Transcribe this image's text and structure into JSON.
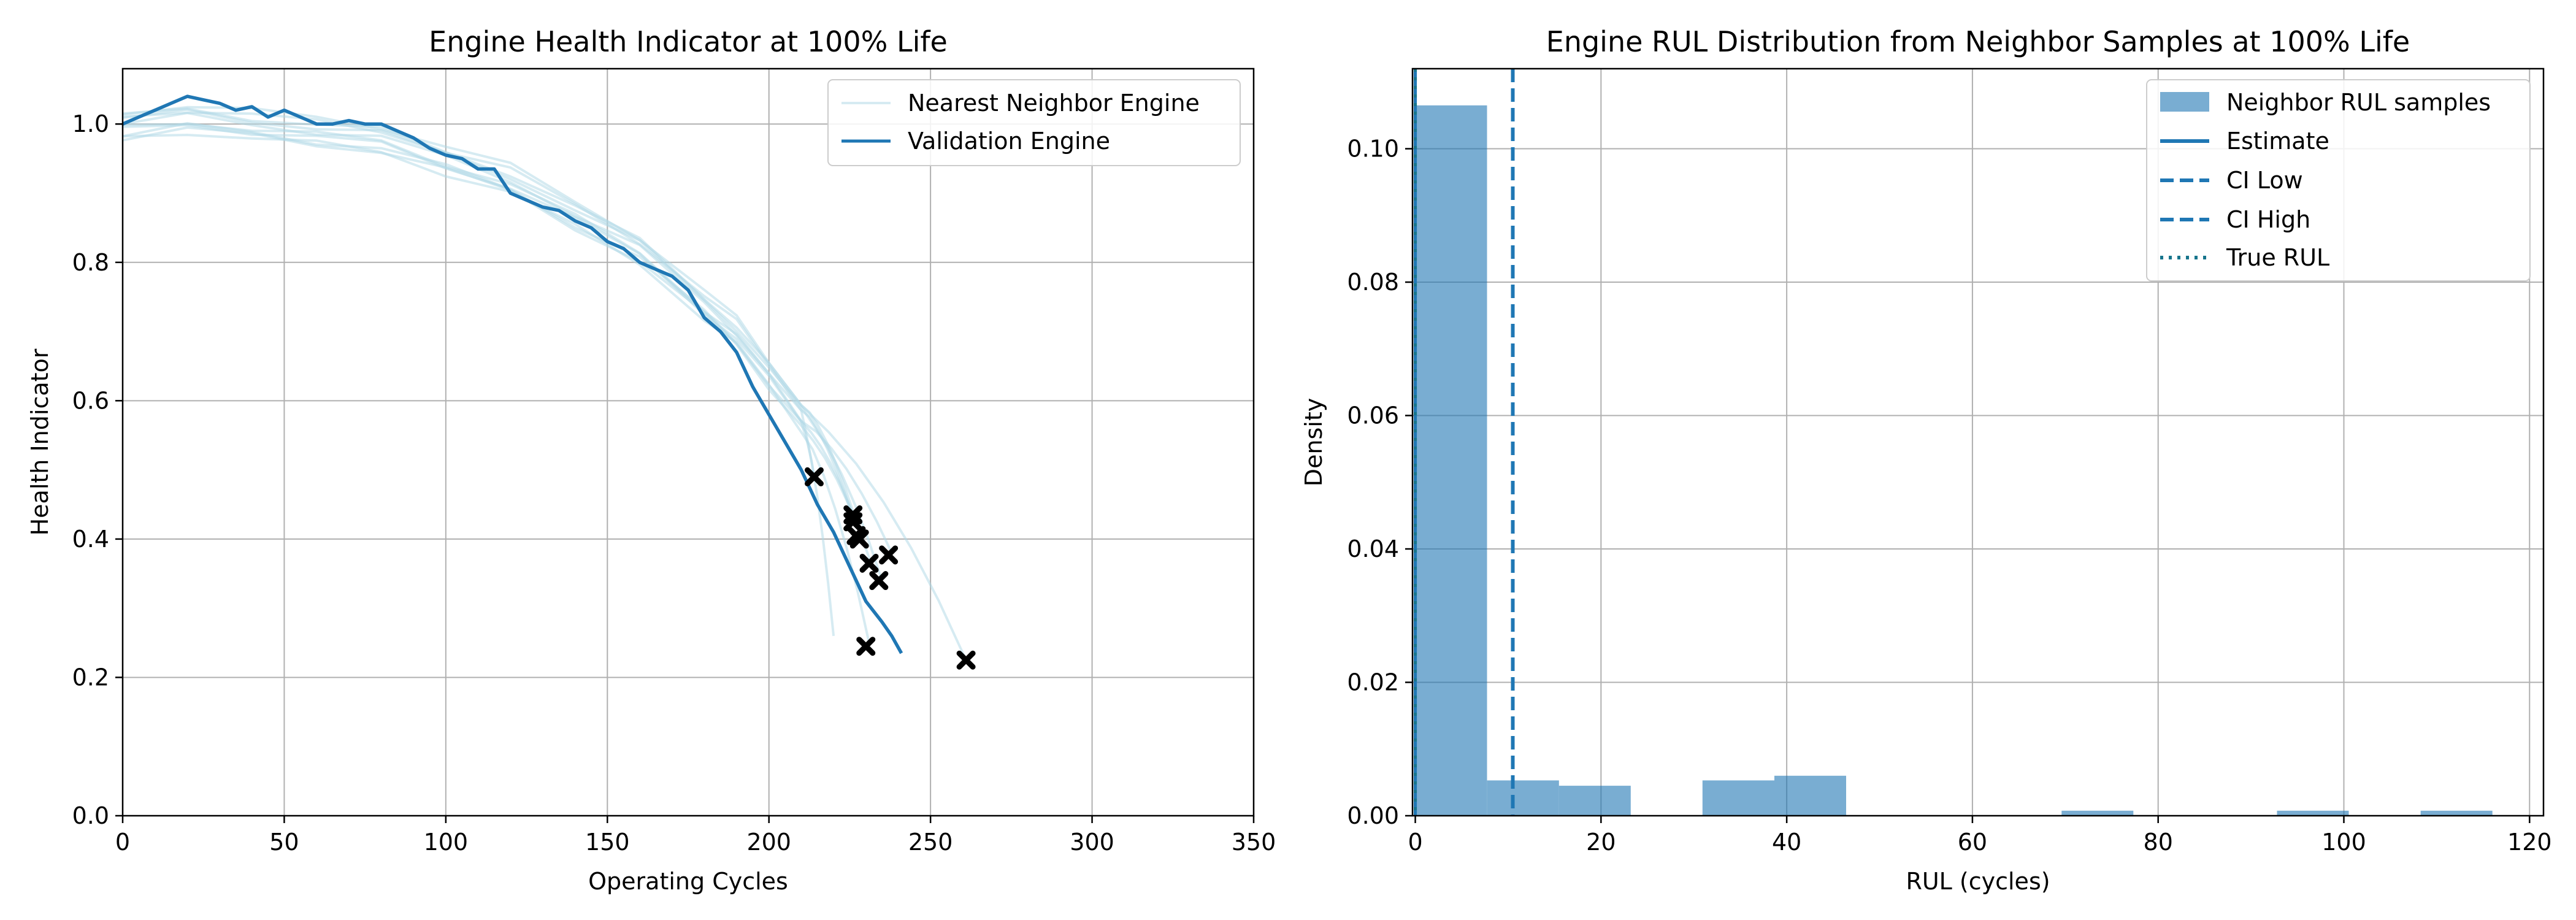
{
  "chart_data": [
    {
      "type": "line",
      "title": "Engine Health Indicator at 100% Life",
      "xlabel": "Operating Cycles",
      "ylabel": "Health Indicator",
      "xlim": [
        0,
        350
      ],
      "ylim": [
        0,
        1.08
      ],
      "xticks": [
        0,
        50,
        100,
        150,
        200,
        250,
        300,
        350
      ],
      "yticks": [
        0.0,
        0.2,
        0.4,
        0.6,
        0.8,
        1.0
      ],
      "grid": true,
      "legend": "top-right",
      "colors": {
        "neighbor": "#add8e6",
        "validation": "#1f77b4",
        "marker": "#000000"
      },
      "series": [
        {
          "name": "Validation Engine",
          "x": [
            0,
            5,
            10,
            15,
            20,
            25,
            30,
            35,
            40,
            45,
            50,
            55,
            60,
            65,
            70,
            75,
            80,
            85,
            90,
            95,
            100,
            105,
            110,
            115,
            120,
            125,
            130,
            135,
            140,
            145,
            150,
            155,
            160,
            165,
            170,
            175,
            180,
            185,
            190,
            195,
            200,
            205,
            210,
            215,
            220,
            225,
            230,
            235,
            238,
            241
          ],
          "y": [
            1.0,
            1.01,
            1.02,
            1.03,
            1.04,
            1.035,
            1.03,
            1.02,
            1.025,
            1.01,
            1.02,
            1.01,
            1.0,
            1.0,
            1.005,
            1.0,
            1.0,
            0.99,
            0.98,
            0.965,
            0.955,
            0.95,
            0.935,
            0.935,
            0.9,
            0.89,
            0.88,
            0.875,
            0.86,
            0.85,
            0.83,
            0.82,
            0.8,
            0.79,
            0.78,
            0.76,
            0.72,
            0.7,
            0.67,
            0.62,
            0.58,
            0.54,
            0.5,
            0.45,
            0.41,
            0.36,
            0.31,
            0.28,
            0.26,
            0.235
          ]
        }
      ],
      "neighbor_engines": {
        "name": "Nearest Neighbor Engine",
        "x": [
          0,
          20,
          40,
          60,
          80,
          100,
          120,
          140,
          160,
          180,
          190,
          200,
          210
        ],
        "y_end_pairs": [
          [
            220,
            0.26
          ],
          [
            228,
            0.41
          ],
          [
            226,
            0.43
          ],
          [
            232,
            0.36
          ],
          [
            235,
            0.34
          ],
          [
            238,
            0.38
          ],
          [
            226,
            0.44
          ],
          [
            214,
            0.49
          ],
          [
            261,
            0.225
          ],
          [
            231,
            0.25
          ]
        ],
        "y": [
          1.0,
          1.01,
          1.0,
          0.99,
          0.98,
          0.95,
          0.92,
          0.87,
          0.82,
          0.74,
          0.7,
          0.64,
          0.58
        ]
      },
      "end_markers": {
        "x": [
          214,
          226,
          226,
          227,
          228,
          231,
          234,
          237,
          230,
          261
        ],
        "y": [
          0.49,
          0.435,
          0.425,
          0.405,
          0.4,
          0.365,
          0.34,
          0.377,
          0.245,
          0.225
        ]
      }
    },
    {
      "type": "bar",
      "title": "Engine RUL Distribution from Neighbor Samples at 100% Life",
      "xlabel": "RUL (cycles)",
      "ylabel": "Density",
      "xlim": [
        -0.3,
        121.5
      ],
      "ylim": [
        0,
        0.112
      ],
      "xticks": [
        0,
        20,
        40,
        60,
        80,
        100,
        120
      ],
      "yticks": [
        0.0,
        0.02,
        0.04,
        0.06,
        0.08,
        0.1
      ],
      "grid": true,
      "legend": "top-right",
      "colors": {
        "hist": "#1f77b4",
        "hist_alpha": 0.6,
        "line": "#1f77b4",
        "truerul": "#17758c"
      },
      "bin_edges": [
        0,
        7.73,
        15.47,
        23.2,
        30.93,
        38.67,
        46.4,
        54.13,
        61.87,
        69.6,
        77.33,
        85.07,
        92.8,
        100.53,
        108.27,
        116.0
      ],
      "density": [
        0.1065,
        0.0053,
        0.0045,
        0.0,
        0.0053,
        0.006,
        0.0,
        0.0,
        0.0,
        0.00075,
        0.0,
        0.0,
        0.00075,
        0.0,
        0.00075
      ],
      "estimate": 0,
      "ci_low": 0,
      "ci_high": 10.5,
      "true_rul": 0,
      "legend_entries": [
        "Neighbor RUL samples",
        "Estimate",
        "CI Low",
        "CI High",
        "True RUL"
      ]
    }
  ]
}
